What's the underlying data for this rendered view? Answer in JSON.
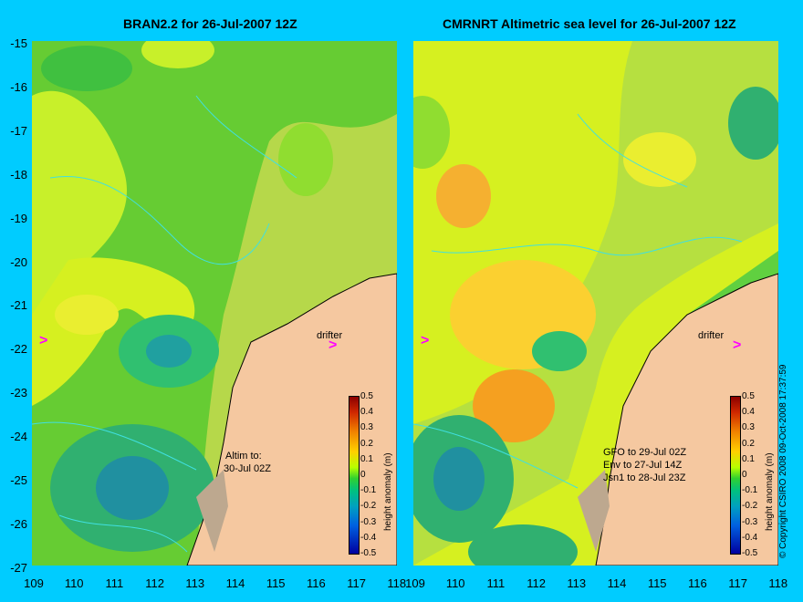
{
  "left_panel": {
    "title": "BRAN2.2 for 26-Jul-2007 12Z",
    "note_line1": "Altim to:",
    "note_line2": "30-Jul 02Z",
    "drifter_label": "drifter"
  },
  "right_panel": {
    "title": "CMRNRT Altimetric sea level  for 26-Jul-2007 12Z",
    "note_line1": "GFO to 29-Jul 02Z",
    "note_line2": "Env to 27-Jul 14Z",
    "note_line3": "Jsn1 to 28-Jul 23Z",
    "drifter_label": "drifter"
  },
  "y_axis_labels": [
    "-15",
    "-16",
    "-17",
    "-18",
    "-19",
    "-20",
    "-21",
    "-22",
    "-23",
    "-24",
    "-25",
    "-26",
    "-27"
  ],
  "x_axis_labels": [
    "109",
    "110",
    "111",
    "112",
    "113",
    "114",
    "115",
    "116",
    "117",
    "118"
  ],
  "colorbar": {
    "ticks": [
      "0.5",
      "0.4",
      "0.3",
      "0.2",
      "0.1",
      "0",
      "-0.1",
      "-0.2",
      "-0.3",
      "-0.4",
      "-0.5"
    ],
    "unit_label": "height anomaly (m)"
  },
  "copyright": "© Copyright CSIRO 2008   09-Oct-2008 17:37:59",
  "colors": {
    "background": "#00ccff",
    "land": "#f5c8a0",
    "drifter_arrow": "#ff00ff",
    "contour": "#40e0e0"
  }
}
